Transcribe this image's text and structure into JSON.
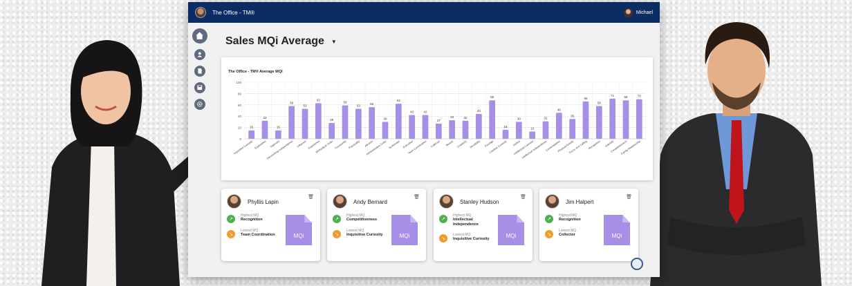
{
  "header": {
    "app_title": "The Office - TM®",
    "user_name": "Michael"
  },
  "page": {
    "title": "Sales MQi Average"
  },
  "chart_data": {
    "type": "bar",
    "title": "The Office - TM® Average MQI",
    "ylim": [
      0,
      100
    ],
    "yticks": [
      0,
      20,
      40,
      60,
      80,
      100
    ],
    "grid": true,
    "bar_color": "#a68fe6",
    "categories": [
      "Inquisitive Curiosity",
      "Exploration",
      "Ingenuity",
      "Discovering Independence",
      "Influence",
      "Experience",
      "Methodical Order",
      "Trustworthy",
      "Practicality",
      "Altruism",
      "Administrative Order",
      "Systematic",
      "Execution",
      "Team Coordination",
      "Collector",
      "Beauty",
      "Creativity",
      "Sensibility",
      "Prestige",
      "Creative Curiosity",
      "Justice",
      "Intellectual Curiosity",
      "Intellectual Independence",
      "Contemplation",
      "Physical Activity",
      "Focus and Calling",
      "Recognition",
      "Sobriety",
      "Competitiveness",
      "Family Relationship"
    ],
    "values": [
      15,
      32,
      15,
      58,
      53,
      63,
      28,
      59,
      53,
      56,
      30,
      62,
      42,
      42,
      27,
      33,
      32,
      44,
      68,
      16,
      30,
      13,
      31,
      46,
      35,
      66,
      58,
      71,
      68,
      70
    ]
  },
  "cards": [
    {
      "name": "Phyllis Lapin",
      "highest_label": "Highest MQ",
      "highest": "Recognition",
      "lowest_label": "Lowest MQ",
      "lowest": "Team Coordination",
      "doc_label": "MQi"
    },
    {
      "name": "Andy Bernard",
      "highest_label": "Highest MQ",
      "highest": "Competitiveness",
      "lowest_label": "Lowest MQ",
      "lowest": "Inquisitive Curiosity",
      "doc_label": "MQi"
    },
    {
      "name": "Stanley Hudson",
      "highest_label": "Highest MQ",
      "highest": "Intellectual Independence",
      "lowest_label": "Lowest MQ",
      "lowest": "Inquisitive Curiosity",
      "doc_label": "MQi"
    },
    {
      "name": "Jim Halpert",
      "highest_label": "Highest MQ",
      "highest": "Recognition",
      "lowest_label": "Lowest MQ",
      "lowest": "Collector",
      "doc_label": "MQi"
    }
  ],
  "colors": {
    "topbar": "#0c2d63",
    "bar": "#a68fe6",
    "highest_icon": "#4caf50",
    "lowest_icon": "#f29b2a"
  },
  "icons": [
    "home-icon",
    "user-icon",
    "document-icon",
    "save-icon",
    "settings-icon",
    "trash-icon"
  ]
}
